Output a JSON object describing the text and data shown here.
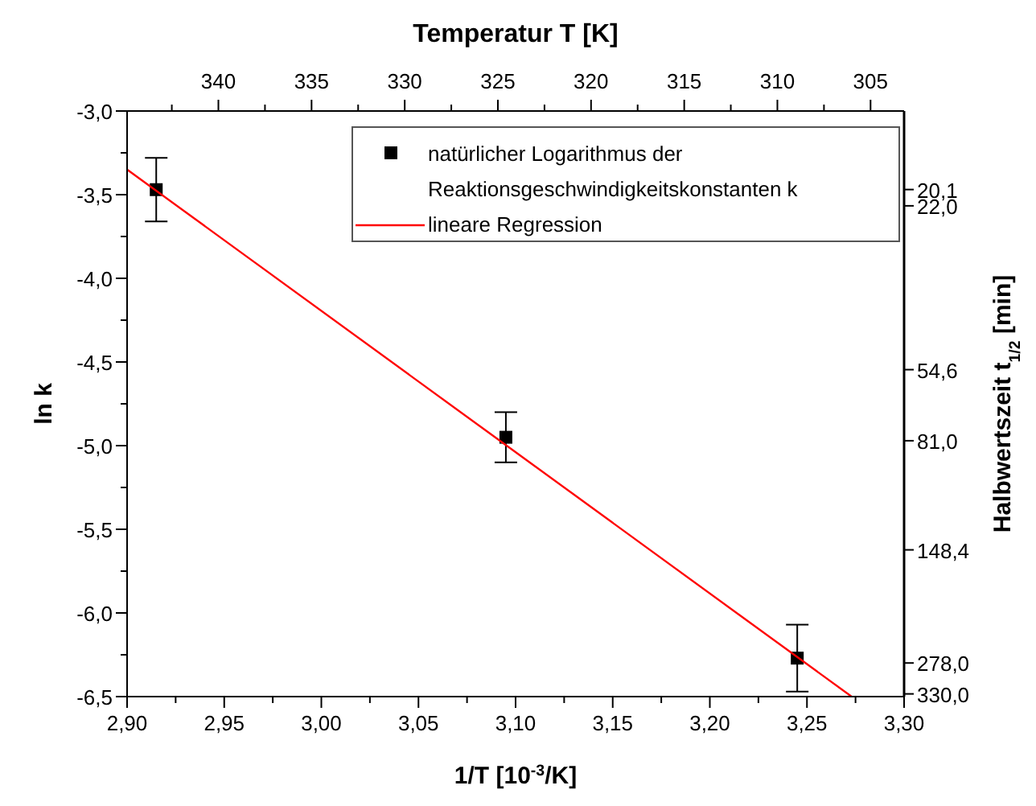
{
  "chart_data": {
    "type": "scatter",
    "x2label": "Temperatur T [K]",
    "xlabel": "1/T  [10$^{-3}$/K]",
    "ylabel": "ln k",
    "y2label": "Halbwertszeit t$_{1/2}$ [min]",
    "xlim": [
      2.9,
      3.3
    ],
    "xticks": [
      {
        "value": 2.9,
        "label": "2,90"
      },
      {
        "value": 2.925,
        "label": null
      },
      {
        "value": 2.95,
        "label": "2,95"
      },
      {
        "value": 2.975,
        "label": null
      },
      {
        "value": 3.0,
        "label": "3,00"
      },
      {
        "value": 3.025,
        "label": null
      },
      {
        "value": 3.05,
        "label": "3,05"
      },
      {
        "value": 3.075,
        "label": null
      },
      {
        "value": 3.1,
        "label": "3,10"
      },
      {
        "value": 3.125,
        "label": null
      },
      {
        "value": 3.15,
        "label": "3,15"
      },
      {
        "value": 3.175,
        "label": null
      },
      {
        "value": 3.2,
        "label": "3,20"
      },
      {
        "value": 3.225,
        "label": null
      },
      {
        "value": 3.25,
        "label": "3,25"
      },
      {
        "value": 3.275,
        "label": null
      },
      {
        "value": 3.3,
        "label": "3,30"
      }
    ],
    "x2lim": [
      344.9,
      303.2
    ],
    "x2ticks": [
      {
        "value": 342.5,
        "label": null
      },
      340,
      {
        "value": 337.5,
        "label": null
      },
      335,
      {
        "value": 332.5,
        "label": null
      },
      330,
      {
        "value": 327.5,
        "label": null
      },
      325,
      {
        "value": 322.5,
        "label": null
      },
      320,
      {
        "value": 317.5,
        "label": null
      },
      315,
      {
        "value": 312.5,
        "label": null
      },
      310,
      {
        "value": 307.5,
        "label": null
      },
      305
    ],
    "ylim": [
      -6.5,
      -3.0
    ],
    "yticks": [
      {
        "value": -6.5,
        "label": "-6,5"
      },
      {
        "value": -6.25,
        "label": null
      },
      {
        "value": -6.0,
        "label": "-6,0"
      },
      {
        "value": -5.75,
        "label": null
      },
      {
        "value": -5.5,
        "label": "-5,5"
      },
      {
        "value": -5.25,
        "label": null
      },
      {
        "value": -5.0,
        "label": "-5,0"
      },
      {
        "value": -4.75,
        "label": null
      },
      {
        "value": -4.5,
        "label": "-4,5"
      },
      {
        "value": -4.25,
        "label": null
      },
      {
        "value": -4.0,
        "label": "-4,0"
      },
      {
        "value": -3.75,
        "label": null
      },
      {
        "value": -3.5,
        "label": "-3,5"
      },
      {
        "value": -3.25,
        "label": null
      },
      {
        "value": -3.0,
        "label": "-3,0"
      }
    ],
    "y2lim": [
      335,
      13
    ],
    "y2ticks": [
      {
        "value": 20.1,
        "label": "20,1"
      },
      {
        "value": 22.0,
        "label": "22,0"
      },
      {
        "value": 54.6,
        "label": "54,6"
      },
      {
        "value": 81.0,
        "label": "81,0"
      },
      {
        "value": 148.4,
        "label": "148,4"
      },
      {
        "value": 278.0,
        "label": "278,0"
      },
      {
        "value": 330.0,
        "label": "330,0"
      }
    ],
    "log": "y2",
    "legend": "top right",
    "grid": false,
    "series": [
      {
        "name": "natürlicher Logarithmus der Reaktionsgeschwindigkeitskonstanten k",
        "marker": "square",
        "color": "#000000",
        "x": [
          2.915,
          3.095,
          3.245
        ],
        "values": [
          -3.47,
          -4.95,
          -6.27
        ],
        "errors": [
          0.19,
          0.15,
          0.2
        ]
      },
      {
        "name": "lineare Regression",
        "type": "line",
        "color": "#ff0000",
        "x": [
          2.9,
          3.273
        ],
        "values": [
          -3.35,
          -6.5
        ]
      }
    ]
  }
}
